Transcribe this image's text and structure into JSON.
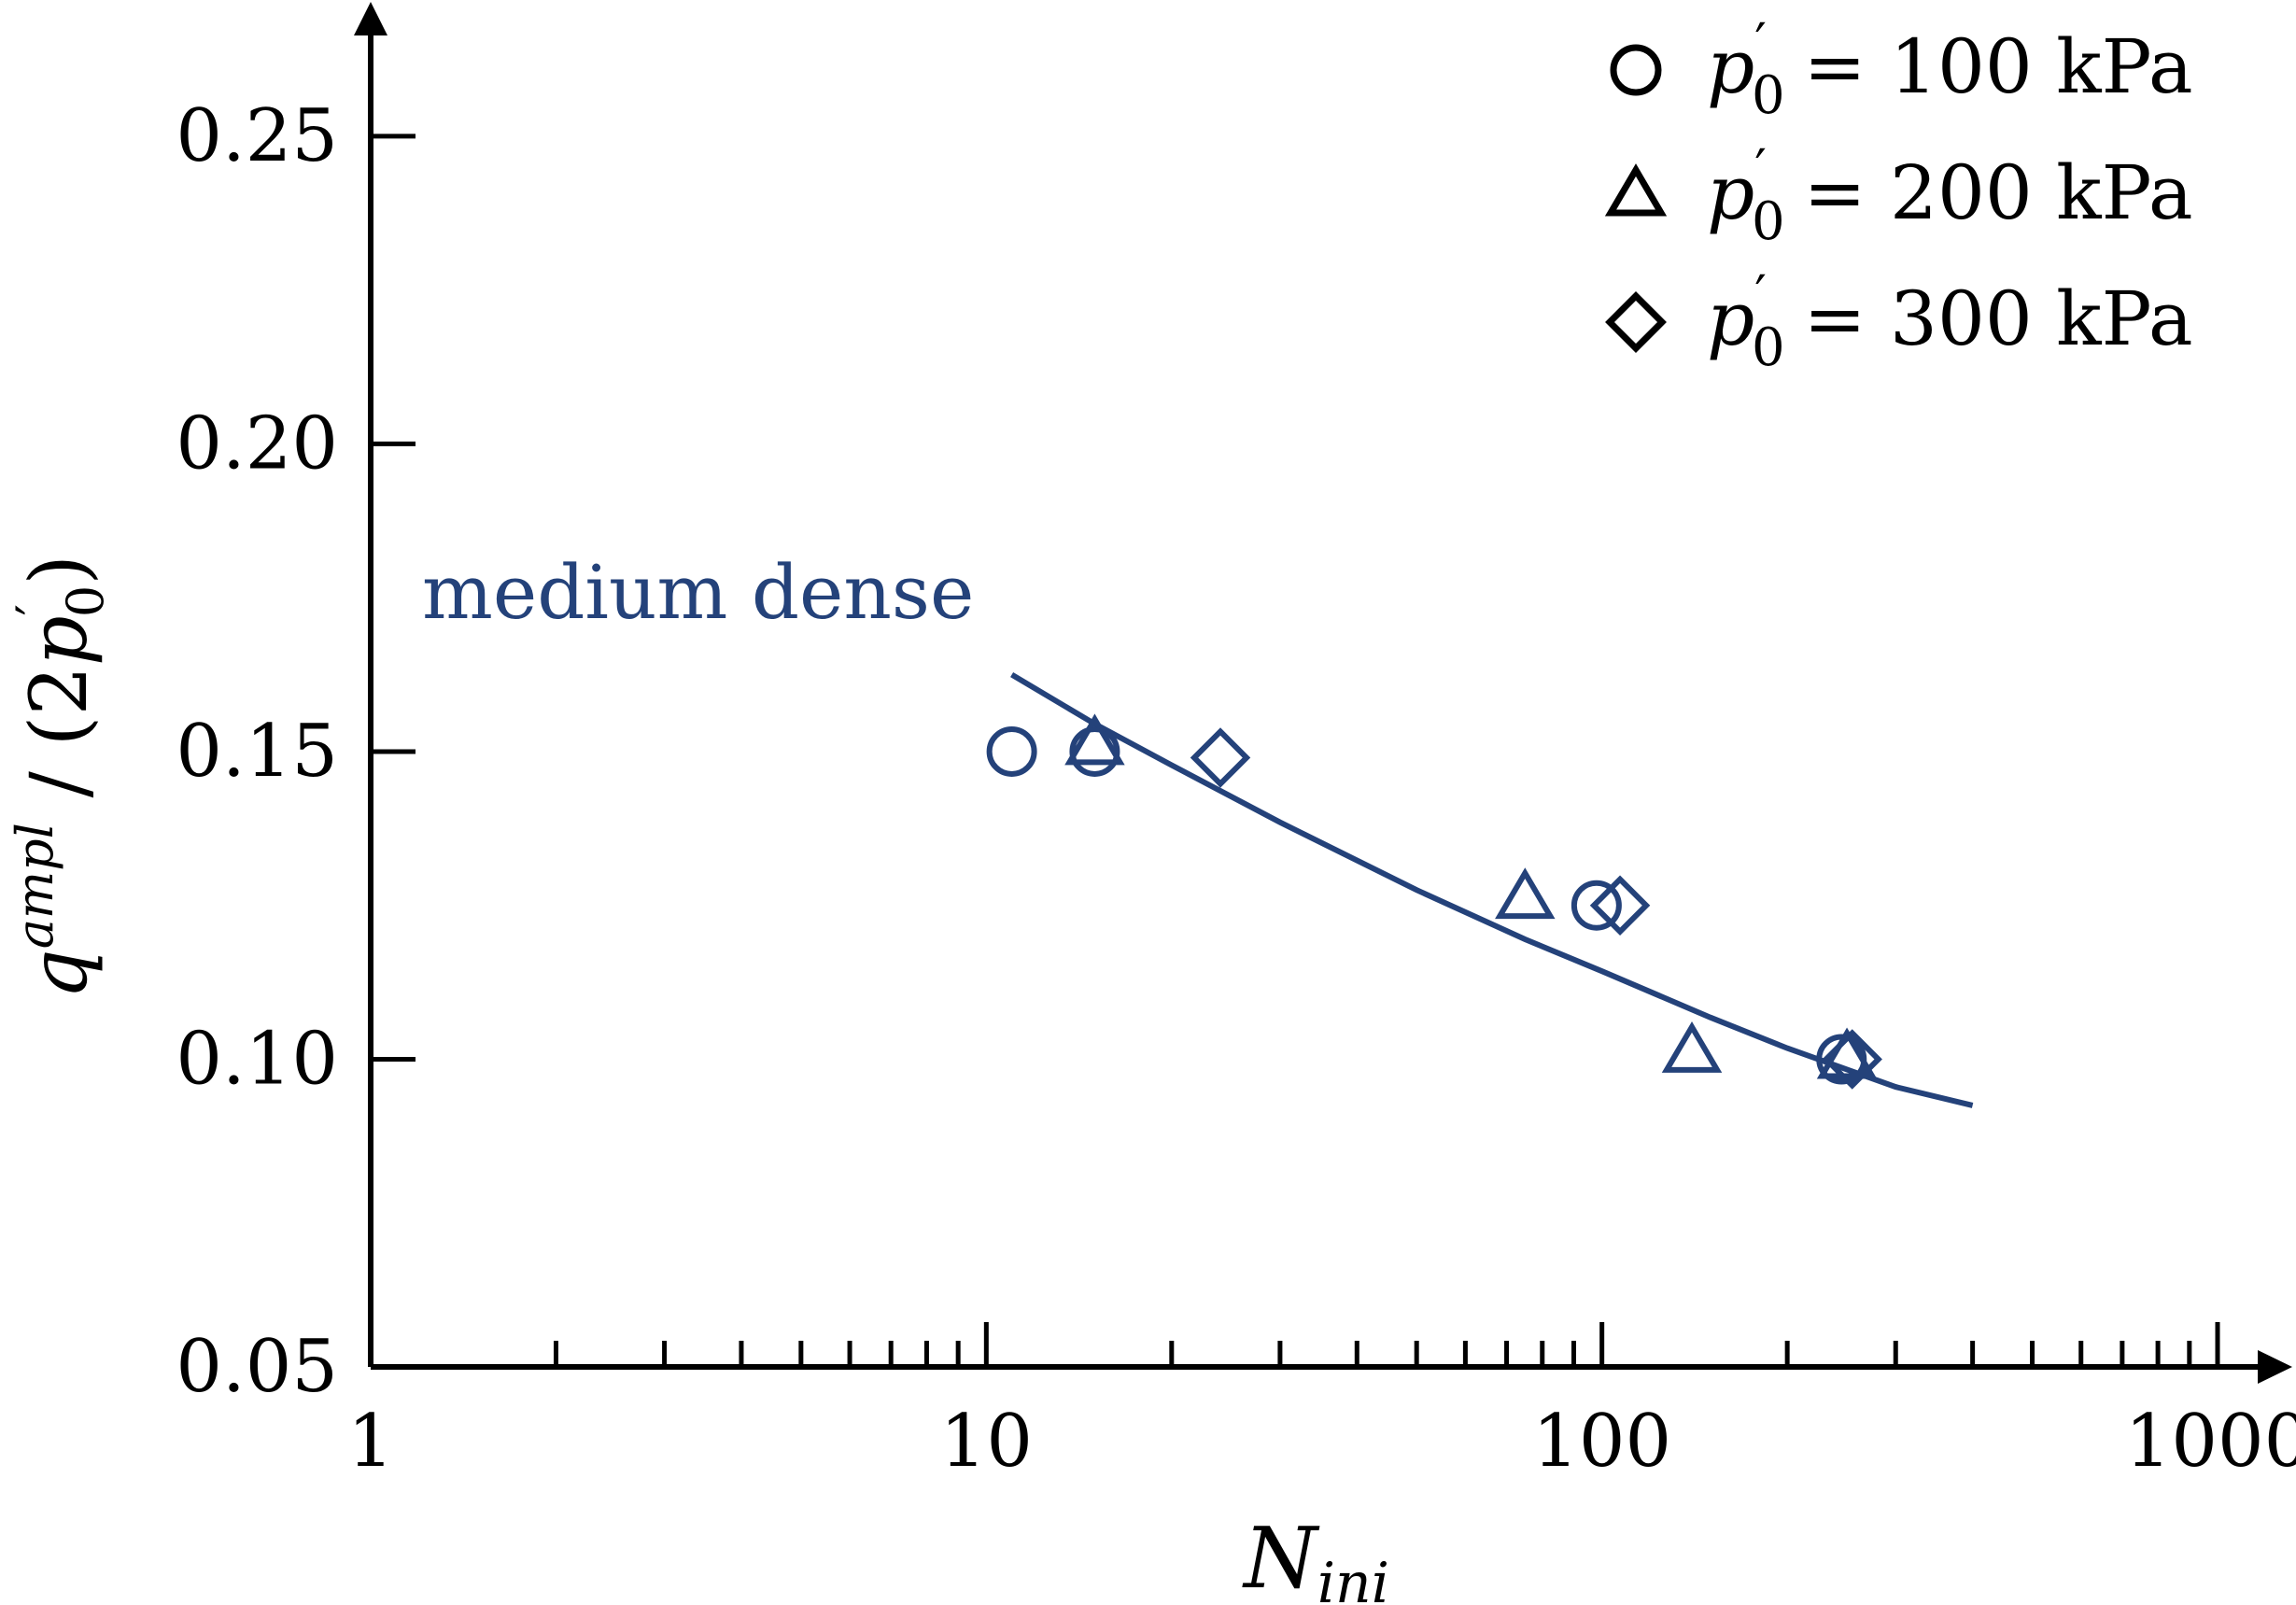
{
  "chart_data": {
    "type": "scatter",
    "xscale": "log",
    "xlim": [
      1,
      1000
    ],
    "ylim": [
      0.05,
      0.26
    ],
    "xlabel": "N_ini",
    "ylabel": "q^ampl / (2p'_0)",
    "x_ticks": [
      {
        "value": 1,
        "label": "1"
      },
      {
        "value": 10,
        "label": "10"
      },
      {
        "value": 100,
        "label": "100"
      },
      {
        "value": 1000,
        "label": "1000"
      }
    ],
    "y_ticks": [
      {
        "value": 0.05,
        "label": "0.05"
      },
      {
        "value": 0.1,
        "label": "0.10"
      },
      {
        "value": 0.15,
        "label": "0.15"
      },
      {
        "value": 0.2,
        "label": "0.20"
      },
      {
        "value": 0.25,
        "label": "0.25"
      }
    ],
    "annotation": "medium dense",
    "colors": {
      "data": "#24427a",
      "axis": "#000000"
    },
    "legend_position": "top-right",
    "series": [
      {
        "name": "p'_0 = 100 kPa",
        "name_parts": [
          "p",
          "0",
          "= 100 kPa"
        ],
        "marker": "circle",
        "x": [
          11,
          15,
          98,
          245
        ],
        "y": [
          0.15,
          0.15,
          0.125,
          0.1
        ]
      },
      {
        "name": "p'_0 = 200 kPa",
        "name_parts": [
          "p",
          "0",
          "= 200 kPa"
        ],
        "marker": "triangle",
        "x": [
          15,
          75,
          140,
          250
        ],
        "y": [
          0.151,
          0.126,
          0.101,
          0.1
        ]
      },
      {
        "name": "p'_0 = 300 kPa",
        "name_parts": [
          "p",
          "0",
          "= 300 kPa"
        ],
        "marker": "diamond",
        "x": [
          24,
          107,
          255
        ],
        "y": [
          0.149,
          0.125,
          0.1
        ]
      }
    ],
    "fit_curve": {
      "x": [
        11,
        15,
        20,
        30,
        50,
        75,
        100,
        150,
        200,
        300,
        400
      ],
      "y": [
        0.1625,
        0.1545,
        0.1478,
        0.1385,
        0.1275,
        0.1195,
        0.1143,
        0.1068,
        0.1018,
        0.0955,
        0.0925
      ]
    }
  }
}
